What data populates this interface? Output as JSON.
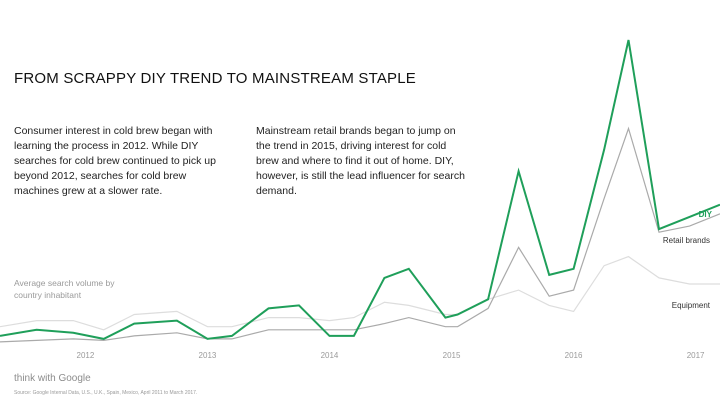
{
  "title": "FROM SCRAPPY DIY TREND TO MAINSTREAM STAPLE",
  "note_left": "Consumer interest in cold brew began with learning the process in 2012. While DIY searches for cold brew continued to pick up beyond 2012, searches for cold brew machines grew at a slower rate.",
  "note_right": "Mainstream retail brands began to jump on the trend in 2015, driving interest for cold brew and where to find it out of home. DIY, however, is still the lead influencer for search demand.",
  "brand": "think with Google",
  "source": "Source: Google Internal Data, U.S., U.K., Spain, Mexico, April 2011 to March 2017.",
  "chart_data": {
    "type": "line",
    "ylabel": "Average search volume by country inhabitant",
    "x_ticks": [
      "2012",
      "2013",
      "2014",
      "2015",
      "2016",
      "2017"
    ],
    "x": [
      2011.3,
      2011.6,
      2011.9,
      2012.15,
      2012.4,
      2012.75,
      2013.0,
      2013.2,
      2013.5,
      2013.75,
      2014.0,
      2014.2,
      2014.45,
      2014.65,
      2014.95,
      2015.05,
      2015.3,
      2015.55,
      2015.8,
      2016.0,
      2016.25,
      2016.45,
      2016.7,
      2016.95,
      2017.2
    ],
    "ylim": [
      0,
      100
    ],
    "series": [
      {
        "name": "DIY",
        "color": "#1f9f5a",
        "values": [
          3,
          5,
          4,
          2,
          7,
          8,
          2,
          3,
          12,
          13,
          3,
          3,
          22,
          25,
          9,
          10,
          15,
          57,
          23,
          25,
          64,
          100,
          38,
          42,
          46
        ]
      },
      {
        "name": "Retail brands",
        "color": "#aaaaaa",
        "values": [
          1,
          1.5,
          2,
          1.5,
          3,
          4,
          2,
          2,
          5,
          5,
          5,
          5,
          7,
          9,
          6,
          6,
          12,
          32,
          16,
          18,
          48,
          71,
          37,
          39,
          43
        ]
      },
      {
        "name": "Equipment",
        "color": "#dddddd",
        "values": [
          6,
          8,
          8,
          5,
          10,
          11,
          6,
          6,
          9,
          9,
          8,
          9,
          14,
          13,
          10,
          10,
          15,
          18,
          13,
          11,
          26,
          29,
          22,
          20,
          20
        ]
      }
    ]
  }
}
